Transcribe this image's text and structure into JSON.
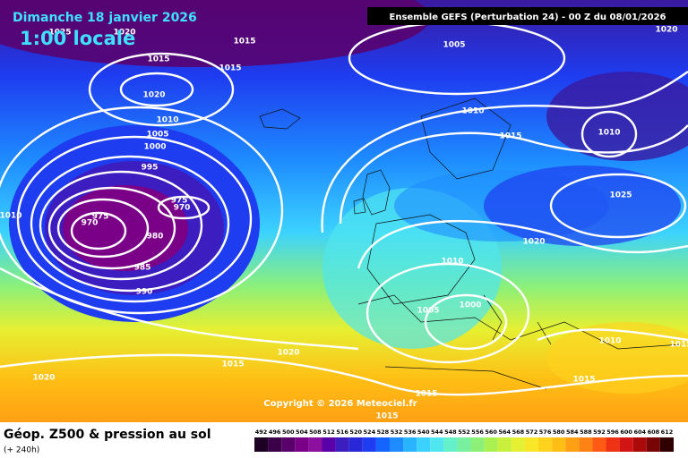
{
  "header": {
    "date": "Dimanche 18 janvier 2026",
    "time": "1:00 locale",
    "model": "Ensemble GEFS  (Perturbation 24)  -  00 Z du 08/01/2026"
  },
  "copyright": "Copyright © 2026 Meteociel.fr",
  "footer": {
    "title": "Géop. Z500 & pression au sol",
    "lead": "(+ 240h)"
  },
  "isobars": [
    1025,
    1020,
    1015,
    1005,
    1020,
    1015,
    1015,
    1020,
    1010,
    1010,
    1005,
    1015,
    1010,
    1000,
    995,
    1025,
    975,
    970,
    975,
    970,
    1010,
    980,
    1020,
    1010,
    985,
    990,
    1000,
    1005,
    1010,
    1015,
    1020,
    1020,
    1015,
    1015,
    1015,
    1015
  ],
  "scale": {
    "labels": [
      492,
      496,
      500,
      504,
      508,
      512,
      516,
      520,
      524,
      528,
      532,
      536,
      540,
      544,
      548,
      552,
      556,
      560,
      564,
      568,
      572,
      576,
      580,
      584,
      588,
      592,
      596,
      600,
      604,
      608,
      612
    ],
    "colors": [
      "#1e0025",
      "#3a0048",
      "#5a006a",
      "#7a0088",
      "#8c10a0",
      "#5a00a8",
      "#3c1ec0",
      "#2828d8",
      "#1e3cf0",
      "#1464ff",
      "#1e8cff",
      "#28b4ff",
      "#3cd2ff",
      "#50e6f0",
      "#64f0c8",
      "#78f0a0",
      "#8cf078",
      "#aaf050",
      "#c8f03c",
      "#e6f032",
      "#fae628",
      "#ffd21e",
      "#ffbe14",
      "#ffa014",
      "#ff8214",
      "#ff5a14",
      "#f03214",
      "#d21414",
      "#aa0a0a",
      "#780505",
      "#300000"
    ]
  }
}
